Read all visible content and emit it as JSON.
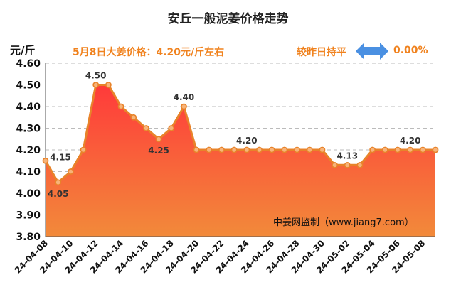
{
  "header": {
    "title": "安丘一般泥姜价格走势",
    "unit_label": "元/斤",
    "price_text": "5月8日大姜价格：4.20元/斤左右",
    "compare_text": "较昨日持平",
    "change_text": "0.00%"
  },
  "watermark": "中姜网监制（www.jiang7.com）",
  "colors": {
    "line": "#e8832a",
    "marker_fill": "#f7b47a",
    "area_top": "#ff3a3a",
    "area_bottom": "#f28a3a",
    "arrow": "#4a90e2",
    "accent_text": "#f0821e"
  },
  "chart_data": {
    "type": "area",
    "title": "安丘一般泥姜价格走势",
    "ylabel": "元/斤",
    "ylim": [
      3.8,
      4.6
    ],
    "yticks": [
      "4.60",
      "4.50",
      "4.40",
      "4.30",
      "4.20",
      "4.10",
      "4.00",
      "3.90",
      "3.80"
    ],
    "ytick_values": [
      4.6,
      4.5,
      4.4,
      4.3,
      4.2,
      4.1,
      4.0,
      3.9,
      3.8
    ],
    "xtick_labels": [
      "24-04-08",
      "24-04-10",
      "24-04-12",
      "24-04-14",
      "24-04-16",
      "24-04-18",
      "24-04-20",
      "24-04-22",
      "24-04-24",
      "24-04-26",
      "24-04-28",
      "24-04-30",
      "24-05-02",
      "24-05-04",
      "24-05-06",
      "24-05-08"
    ],
    "series": [
      {
        "name": "安丘一般泥姜价格",
        "values": [
          4.15,
          4.05,
          4.1,
          4.2,
          4.5,
          4.5,
          4.4,
          4.35,
          4.3,
          4.25,
          4.3,
          4.4,
          4.2,
          4.2,
          4.2,
          4.2,
          4.2,
          4.2,
          4.2,
          4.2,
          4.2,
          4.2,
          4.2,
          4.13,
          4.13,
          4.13,
          4.2,
          4.2,
          4.2,
          4.2,
          4.2,
          4.2
        ]
      }
    ],
    "data_labels": [
      {
        "index": 0,
        "text": "4.15"
      },
      {
        "index": 1,
        "text": "4.05"
      },
      {
        "index": 4,
        "text": "4.50"
      },
      {
        "index": 9,
        "text": "4.25"
      },
      {
        "index": 11,
        "text": "4.40"
      },
      {
        "index": 16,
        "text": "4.20"
      },
      {
        "index": 24,
        "text": "4.13"
      },
      {
        "index": 29,
        "text": "4.20"
      }
    ]
  }
}
